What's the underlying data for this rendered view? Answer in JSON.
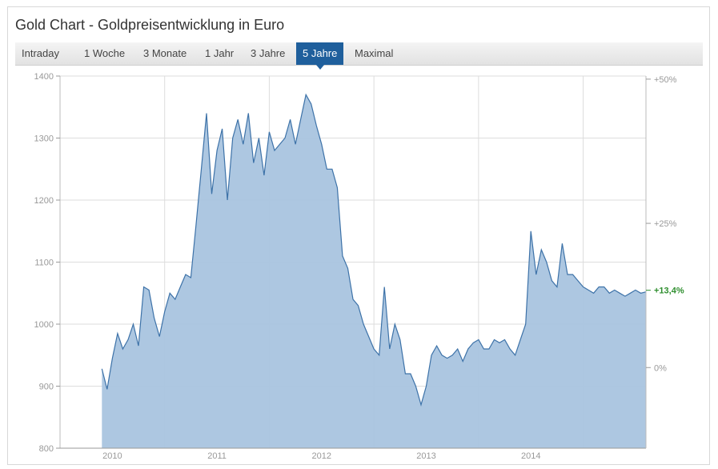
{
  "title": "Gold Chart - Goldpreisentwicklung in Euro",
  "tabs": [
    {
      "label": "Intraday"
    },
    {
      "label": "1 Woche"
    },
    {
      "label": "3 Monate"
    },
    {
      "label": "1 Jahr"
    },
    {
      "label": "3 Jahre"
    },
    {
      "label": "5 Jahre",
      "active": true
    },
    {
      "label": "Maximal"
    }
  ],
  "colors": {
    "fill": "#a9c4df",
    "line": "#3d72a8",
    "accent": "#1f5f9c",
    "positive": "#2f8f2f"
  },
  "chart_data": {
    "type": "area",
    "yticks": [
      800,
      900,
      1000,
      1100,
      1200,
      1300,
      1400
    ],
    "ylim": [
      800,
      1400
    ],
    "xtick_labels": [
      "2010",
      "2011",
      "2012",
      "2013",
      "2014"
    ],
    "right_axis": {
      "base_value": 930,
      "ticks": [
        {
          "label": "+50%",
          "value": 0.5
        },
        {
          "label": "+25%",
          "value": 0.25
        },
        {
          "label": "0%",
          "value": 0
        }
      ],
      "current_label": "+13,4%",
      "current_value": 0.134
    },
    "grid": true,
    "series": [
      {
        "x": [
          2009.9,
          2009.95,
          2010.0,
          2010.05,
          2010.1,
          2010.15,
          2010.2,
          2010.25,
          2010.3,
          2010.35,
          2010.4,
          2010.45,
          2010.5,
          2010.55,
          2010.6,
          2010.65,
          2010.7,
          2010.75,
          2010.8,
          2010.85,
          2010.9,
          2010.95,
          2011.0,
          2011.05,
          2011.1,
          2011.15,
          2011.2,
          2011.25,
          2011.3,
          2011.35,
          2011.4,
          2011.45,
          2011.5,
          2011.55,
          2011.6,
          2011.65,
          2011.7,
          2011.75,
          2011.8,
          2011.85,
          2011.9,
          2011.95,
          2012.0,
          2012.05,
          2012.1,
          2012.15,
          2012.2,
          2012.25,
          2012.3,
          2012.35,
          2012.4,
          2012.45,
          2012.5,
          2012.55,
          2012.6,
          2012.65,
          2012.7,
          2012.75,
          2012.8,
          2012.85,
          2012.9,
          2012.95,
          2013.0,
          2013.05,
          2013.1,
          2013.15,
          2013.2,
          2013.25,
          2013.3,
          2013.35,
          2013.4,
          2013.45,
          2013.5,
          2013.55,
          2013.6,
          2013.65,
          2013.7,
          2013.75,
          2013.8,
          2013.85,
          2013.9,
          2013.95,
          2014.0,
          2014.05,
          2014.1,
          2014.15,
          2014.2,
          2014.25,
          2014.3,
          2014.35,
          2014.4,
          2014.45,
          2014.5,
          2014.55,
          2014.6,
          2014.65,
          2014.7,
          2014.75,
          2014.8,
          2014.85,
          2014.9,
          2014.95,
          2015.0,
          2015.05,
          2015.1
        ],
        "y": [
          928,
          895,
          945,
          985,
          960,
          975,
          1000,
          965,
          1060,
          1055,
          1010,
          980,
          1020,
          1050,
          1040,
          1060,
          1080,
          1075,
          1160,
          1250,
          1340,
          1210,
          1280,
          1315,
          1200,
          1300,
          1330,
          1290,
          1340,
          1260,
          1300,
          1240,
          1310,
          1280,
          1290,
          1300,
          1330,
          1290,
          1330,
          1370,
          1355,
          1320,
          1290,
          1250,
          1250,
          1220,
          1110,
          1090,
          1040,
          1030,
          1000,
          980,
          960,
          950,
          1060,
          960,
          1000,
          975,
          920,
          920,
          900,
          870,
          900,
          950,
          965,
          950,
          945,
          950,
          960,
          940,
          960,
          970,
          975,
          960,
          960,
          975,
          970,
          975,
          960,
          950,
          975,
          1000,
          1150,
          1080,
          1120,
          1100,
          1070,
          1060,
          1130,
          1080,
          1080,
          1070,
          1060,
          1055,
          1050,
          1060,
          1060,
          1050,
          1055,
          1050,
          1045,
          1050,
          1055,
          1050,
          1052
        ]
      }
    ]
  }
}
